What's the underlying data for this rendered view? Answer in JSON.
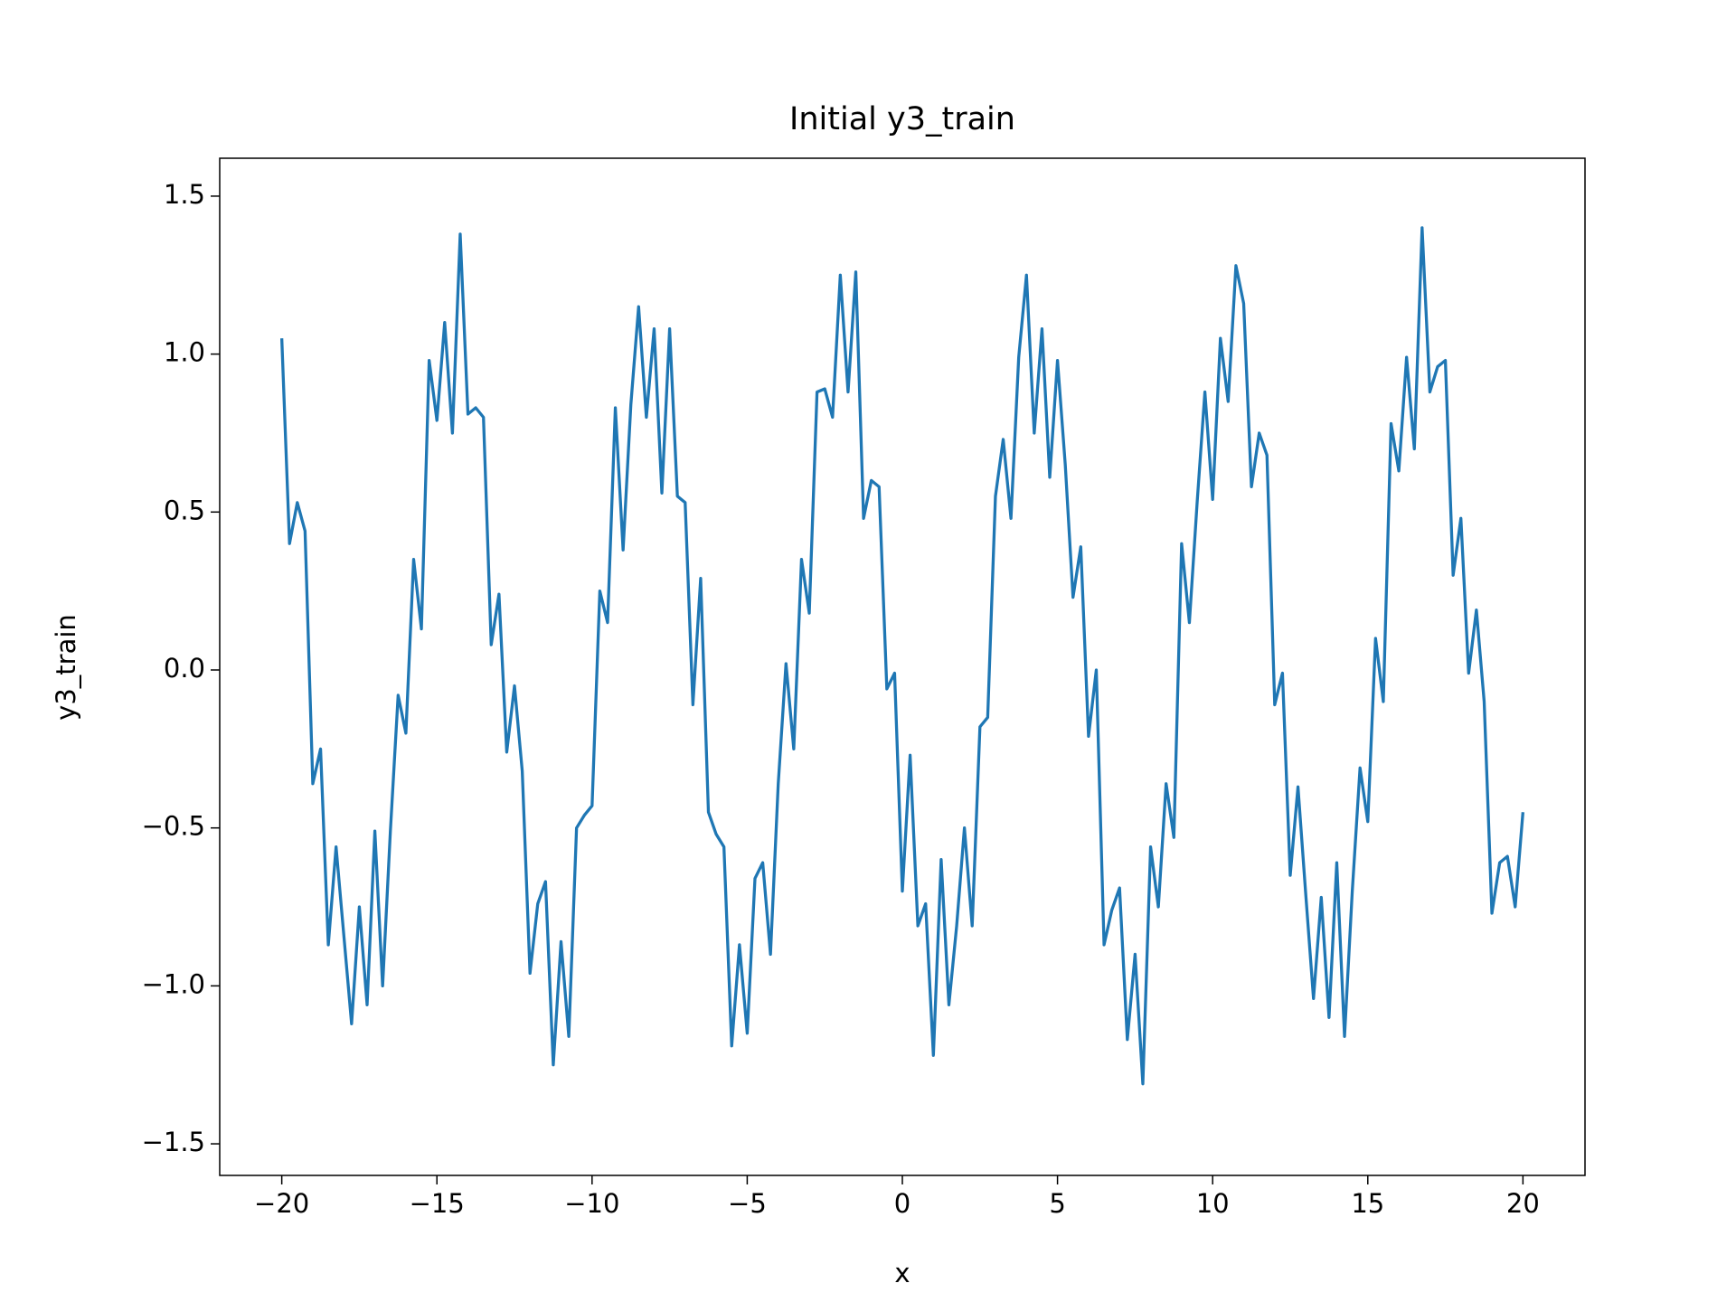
{
  "chart_data": {
    "type": "line",
    "title": "Initial y3_train",
    "x_label": "x",
    "y_label": "y3_train",
    "x": [
      -20,
      -19.75,
      -19.5,
      -19.25,
      -19,
      -18.75,
      -18.5,
      -18.25,
      -18,
      -17.75,
      -17.5,
      -17.25,
      -17,
      -16.75,
      -16.5,
      -16.25,
      -16,
      -15.75,
      -15.5,
      -15.25,
      -15,
      -14.75,
      -14.5,
      -14.25,
      -14,
      -13.75,
      -13.5,
      -13.25,
      -13,
      -12.75,
      -12.5,
      -12.25,
      -12,
      -11.75,
      -11.5,
      -11.25,
      -11,
      -10.75,
      -10.5,
      -10.25,
      -10,
      -9.75,
      -9.5,
      -9.25,
      -9,
      -8.75,
      -8.5,
      -8.25,
      -8,
      -7.75,
      -7.5,
      -7.25,
      -7,
      -6.75,
      -6.5,
      -6.25,
      -6,
      -5.75,
      -5.5,
      -5.25,
      -5,
      -4.75,
      -4.5,
      -4.25,
      -4,
      -3.75,
      -3.5,
      -3.25,
      -3,
      -2.75,
      -2.5,
      -2.25,
      -2,
      -1.75,
      -1.5,
      -1.25,
      -1,
      -0.75,
      -0.5,
      -0.25,
      0,
      0.25,
      0.5,
      0.75,
      1,
      1.25,
      1.5,
      1.75,
      2,
      2.25,
      2.5,
      2.75,
      3,
      3.25,
      3.5,
      3.75,
      4,
      4.25,
      4.5,
      4.75,
      5,
      5.25,
      5.5,
      5.75,
      6,
      6.25,
      6.5,
      6.75,
      7,
      7.25,
      7.5,
      7.75,
      8,
      8.25,
      8.5,
      8.75,
      9,
      9.25,
      9.5,
      9.75,
      10,
      10.25,
      10.5,
      10.75,
      11,
      11.25,
      11.5,
      11.75,
      12,
      12.25,
      12.5,
      12.75,
      13,
      13.25,
      13.5,
      13.75,
      14,
      14.25,
      14.5,
      14.75,
      15,
      15.25,
      15.5,
      15.75,
      16,
      16.25,
      16.5,
      16.75,
      17,
      17.25,
      17.5,
      17.75,
      18,
      18.25,
      18.5,
      18.75,
      19,
      19.25,
      19.5,
      19.75,
      20
    ],
    "series": [
      {
        "name": "y3_train",
        "color": "#1f77b4",
        "values": [
          1.05,
          0.4,
          0.53,
          0.44,
          -0.36,
          -0.25,
          -0.87,
          -0.56,
          -0.84,
          -1.12,
          -0.75,
          -1.06,
          -0.51,
          -1.0,
          -0.51,
          -0.08,
          -0.2,
          0.35,
          0.13,
          0.98,
          0.79,
          1.1,
          0.75,
          1.38,
          0.81,
          0.83,
          0.8,
          0.08,
          0.24,
          -0.26,
          -0.05,
          -0.32,
          -0.96,
          -0.74,
          -0.67,
          -1.25,
          -0.86,
          -1.16,
          -0.5,
          -0.46,
          -0.43,
          0.25,
          0.15,
          0.83,
          0.38,
          0.84,
          1.15,
          0.8,
          1.08,
          0.56,
          1.08,
          0.55,
          0.53,
          -0.11,
          0.29,
          -0.45,
          -0.52,
          -0.56,
          -1.19,
          -0.87,
          -1.15,
          -0.66,
          -0.61,
          -0.9,
          -0.36,
          0.02,
          -0.25,
          0.35,
          0.18,
          0.88,
          0.89,
          0.8,
          1.25,
          0.88,
          1.26,
          0.48,
          0.6,
          0.58,
          -0.06,
          -0.01,
          -0.7,
          -0.27,
          -0.81,
          -0.74,
          -1.22,
          -0.6,
          -1.06,
          -0.81,
          -0.5,
          -0.81,
          -0.18,
          -0.15,
          0.55,
          0.73,
          0.48,
          0.99,
          1.25,
          0.75,
          1.08,
          0.61,
          0.98,
          0.65,
          0.23,
          0.39,
          -0.21,
          0.0,
          -0.87,
          -0.76,
          -0.69,
          -1.17,
          -0.9,
          -1.31,
          -0.56,
          -0.75,
          -0.36,
          -0.53,
          0.4,
          0.15,
          0.53,
          0.88,
          0.54,
          1.05,
          0.85,
          1.28,
          1.16,
          0.58,
          0.75,
          0.68,
          -0.11,
          -0.01,
          -0.65,
          -0.37,
          -0.71,
          -1.04,
          -0.72,
          -1.1,
          -0.61,
          -1.16,
          -0.7,
          -0.31,
          -0.48,
          0.1,
          -0.1,
          0.78,
          0.63,
          0.99,
          0.7,
          1.4,
          0.88,
          0.96,
          0.98,
          0.3,
          0.48,
          -0.01,
          0.19,
          -0.1,
          -0.77,
          -0.61,
          -0.59,
          -0.75,
          -0.45
        ]
      }
    ],
    "xlim": [
      -22,
      22
    ],
    "ylim": [
      -1.6,
      1.62
    ],
    "xticks": [
      {
        "value": -20,
        "label": "−20"
      },
      {
        "value": -15,
        "label": "−15"
      },
      {
        "value": -10,
        "label": "−10"
      },
      {
        "value": -5,
        "label": "−5"
      },
      0,
      5,
      10,
      15,
      20
    ],
    "yticks": [
      {
        "value": -1.5,
        "label": "−1.5"
      },
      {
        "value": -1,
        "label": "−1.0"
      },
      {
        "value": -0.5,
        "label": "−0.5"
      },
      {
        "value": 0,
        "label": "0.0"
      },
      0.5,
      {
        "value": 1,
        "label": "1.0"
      },
      1.5
    ],
    "grid": false
  }
}
